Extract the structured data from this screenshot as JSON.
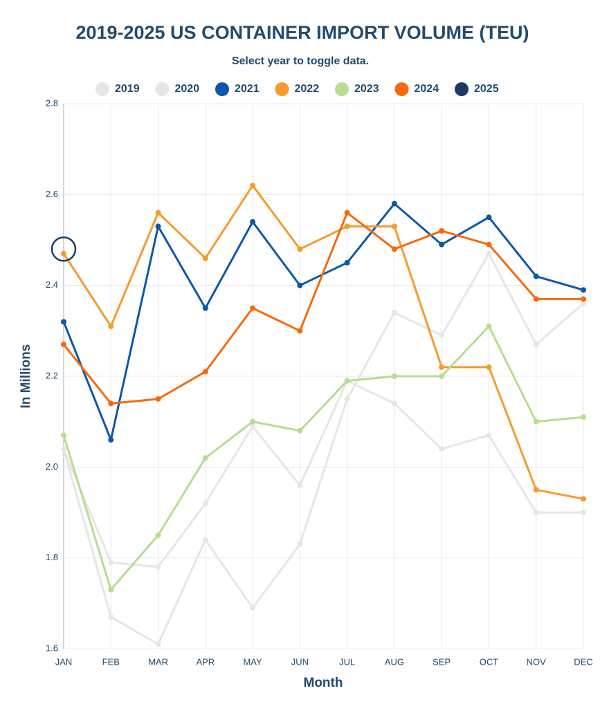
{
  "chart_data": {
    "type": "line",
    "title": "2019-2025 US CONTAINER IMPORT VOLUME (TEU)",
    "subtitle": "Select year to toggle data.",
    "x_label": "Month",
    "y_label": "In Millions",
    "categories": [
      "JAN",
      "FEB",
      "MAR",
      "APR",
      "MAY",
      "JUN",
      "JUL",
      "AUG",
      "SEP",
      "OCT",
      "NOV",
      "DEC"
    ],
    "ylim": [
      1.6,
      2.8
    ],
    "yticks": [
      1.6,
      1.8,
      {
        "value": 2,
        "label": "2.0"
      },
      2.2,
      2.4,
      2.6,
      2.8
    ],
    "grid": true,
    "legend": "top",
    "series": [
      {
        "name": "2019",
        "color": "#e6e6e6",
        "values": [
          2.04,
          1.79,
          1.78,
          1.92,
          2.09,
          1.96,
          2.19,
          2.14,
          2.04,
          2.07,
          1.9,
          1.9
        ]
      },
      {
        "name": "2020",
        "color": "#e6e6e6",
        "values": [
          2.04,
          1.67,
          1.61,
          1.84,
          1.69,
          1.83,
          2.15,
          2.34,
          2.29,
          2.47,
          2.27,
          2.36
        ]
      },
      {
        "name": "2021",
        "color": "#0b57a8",
        "values": [
          2.32,
          2.06,
          2.53,
          2.35,
          2.54,
          2.4,
          2.45,
          2.58,
          2.49,
          2.55,
          2.42,
          2.39
        ]
      },
      {
        "name": "2022",
        "color": "#f79a2b",
        "values": [
          2.47,
          2.31,
          2.56,
          2.46,
          2.62,
          2.48,
          2.53,
          2.53,
          2.22,
          2.22,
          1.95,
          1.93
        ]
      },
      {
        "name": "2023",
        "color": "#b7dd8f",
        "values": [
          2.07,
          1.73,
          1.85,
          2.02,
          2.1,
          2.08,
          2.19,
          2.2,
          2.2,
          2.31,
          2.1,
          2.11
        ]
      },
      {
        "name": "2024",
        "color": "#f7690c",
        "values": [
          2.27,
          2.14,
          2.15,
          2.21,
          2.35,
          2.3,
          2.56,
          2.48,
          2.52,
          2.49,
          2.37,
          2.37
        ]
      },
      {
        "name": "2025",
        "color": "#1a3c63",
        "marker": "hollow",
        "values": [
          2.48,
          null,
          null,
          null,
          null,
          null,
          null,
          null,
          null,
          null,
          null,
          null
        ]
      }
    ]
  }
}
